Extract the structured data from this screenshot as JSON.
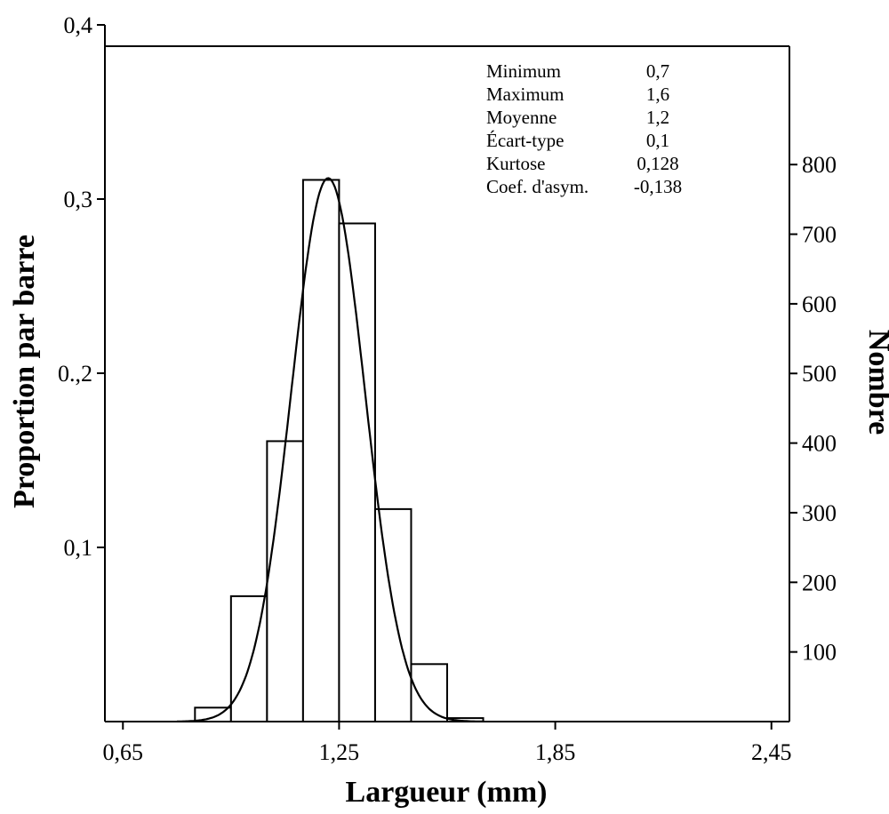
{
  "chart_data": {
    "type": "bar",
    "subtype": "histogram",
    "xlabel": "Largueur (mm)",
    "ylabel": "Proportion par barre",
    "ylabel_right": "Nombre",
    "x_ticks": [
      {
        "value": 0.65,
        "label": "0,65"
      },
      {
        "value": 1.25,
        "label": "1,25"
      },
      {
        "value": 1.85,
        "label": "1,85"
      },
      {
        "value": 2.45,
        "label": "2,45"
      }
    ],
    "y_ticks": [
      {
        "value": 0.1,
        "label": "0,1"
      },
      {
        "value": 0.2,
        "label": "0.,2"
      },
      {
        "value": 0.3,
        "label": "0,3"
      },
      {
        "value": 0.4,
        "label": "0,4"
      }
    ],
    "y_right_ticks": [
      {
        "value": 100,
        "label": "100"
      },
      {
        "value": 200,
        "label": "200"
      },
      {
        "value": 300,
        "label": "300"
      },
      {
        "value": 400,
        "label": "400"
      },
      {
        "value": 500,
        "label": "500"
      },
      {
        "value": 600,
        "label": "600"
      },
      {
        "value": 700,
        "label": "700"
      },
      {
        "value": 800,
        "label": "800"
      }
    ],
    "xlim": [
      0.6,
      2.5
    ],
    "ylim": [
      0,
      0.4
    ],
    "ylim_right": [
      0,
      970
    ],
    "bin_width": 0.1,
    "bins": [
      {
        "start": 0.85,
        "end": 0.95,
        "proportion": 0.008
      },
      {
        "start": 0.95,
        "end": 1.05,
        "proportion": 0.072
      },
      {
        "start": 1.05,
        "end": 1.15,
        "proportion": 0.161
      },
      {
        "start": 1.15,
        "end": 1.25,
        "proportion": 0.311
      },
      {
        "start": 1.25,
        "end": 1.35,
        "proportion": 0.286
      },
      {
        "start": 1.35,
        "end": 1.45,
        "proportion": 0.122
      },
      {
        "start": 1.45,
        "end": 1.55,
        "proportion": 0.033
      },
      {
        "start": 1.55,
        "end": 1.65,
        "proportion": 0.002
      }
    ],
    "normal_curve": {
      "mean": 1.2196,
      "sd": 0.1025,
      "peak": 0.312,
      "range": [
        0.8,
        1.65
      ]
    },
    "stats": [
      {
        "label": "Minimum",
        "value": "0,7"
      },
      {
        "label": "Maximum",
        "value": "1,6"
      },
      {
        "label": "Moyenne",
        "value": "1,2"
      },
      {
        "label": "Écart-type",
        "value": "0,1"
      },
      {
        "label": "Kurtose",
        "value": "0,128"
      },
      {
        "label": "Coef. d'asym.",
        "value": "-0,138"
      }
    ],
    "grid": false
  }
}
